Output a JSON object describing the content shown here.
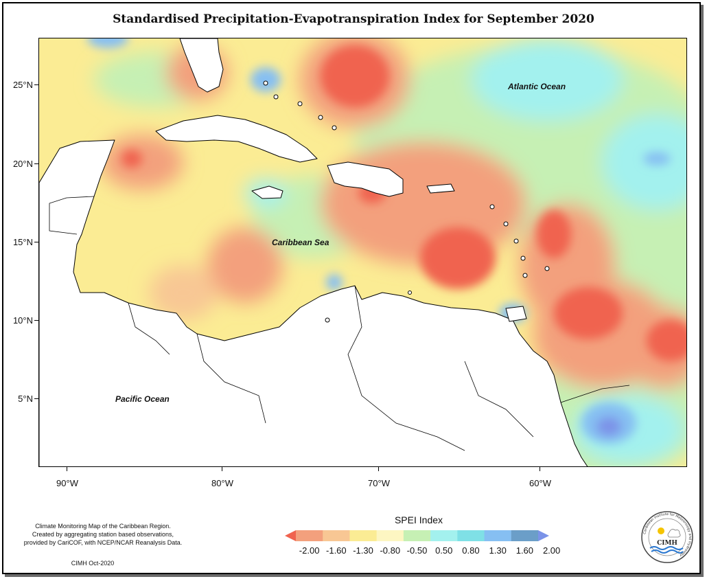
{
  "title": "Standardised Precipitation-Evapotranspiration Index for September 2020",
  "map": {
    "lat_ticks": [
      "25°N",
      "20°N",
      "15°N",
      "10°N",
      "5°N"
    ],
    "lon_ticks": [
      "90°W",
      "80°W",
      "70°W",
      "60°W"
    ],
    "labels": {
      "atlantic": "Atlantic Ocean",
      "caribbean": "Caribbean Sea",
      "pacific": "Pacific Ocean"
    }
  },
  "legend": {
    "title": "SPEI Index",
    "ticks": [
      "-2.00",
      "-1.60",
      "-1.30",
      "-0.80",
      "-0.50",
      "0.50",
      "0.80",
      "1.30",
      "1.60",
      "2.00"
    ],
    "colors": [
      "#f0634f",
      "#f3a07d",
      "#f8c794",
      "#fbec94",
      "#fdf6c2",
      "#c6f0b4",
      "#a3f1ee",
      "#7fe0e6",
      "#86bff2",
      "#6b9ec8",
      "#7b93e8"
    ]
  },
  "credit": {
    "line1": "Climate Monitoring Map of the Caribbean Region.",
    "line2": "Created by aggregating station based observations,",
    "line3": "provided by CariCOF, with NCEP/NCAR Reanalysis Data.",
    "date": "CIMH Oct-2020"
  },
  "logo": {
    "text": "CIMH",
    "ring_text": "Caribbean Institute for Meteorology and Hydrology"
  }
}
